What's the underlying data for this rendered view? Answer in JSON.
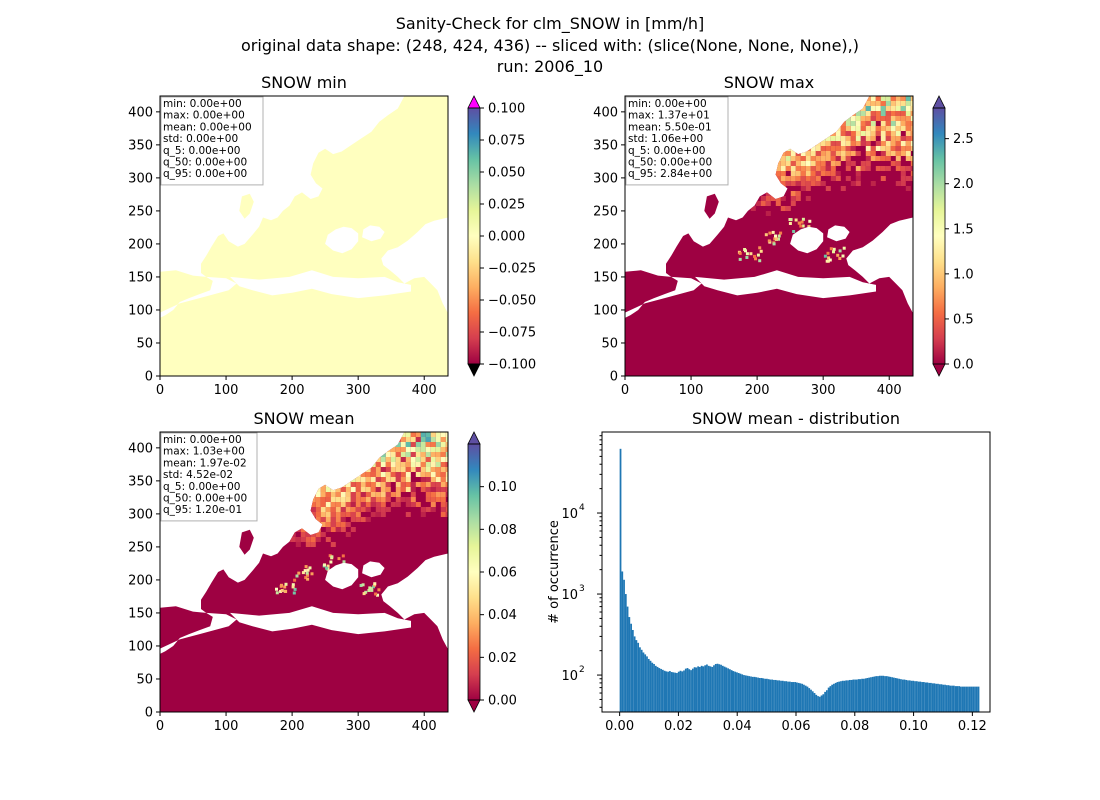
{
  "figure": {
    "title_lines": [
      "Sanity-Check for clm_SNOW in [mm/h]",
      "original data shape: (248, 424, 436) -- sliced with: (slice(None, None, None),)",
      "run: 2006_10"
    ]
  },
  "colormap": {
    "name": "Spectral",
    "stops": [
      "#9e0142",
      "#d53e4f",
      "#f46d43",
      "#fdae61",
      "#fee08b",
      "#ffffbf",
      "#e6f598",
      "#abdda4",
      "#66c2a5",
      "#3288bd",
      "#5e4fa2"
    ],
    "over_min_panel": "#ff00ff",
    "under_min_panel": "#000000"
  },
  "chart_data": [
    {
      "type": "heatmap",
      "title": "SNOW min",
      "xticks": [
        "0",
        "100",
        "200",
        "300",
        "400"
      ],
      "yticks": [
        "0",
        "50",
        "100",
        "150",
        "200",
        "250",
        "300",
        "350",
        "400"
      ],
      "xlim": [
        0,
        436
      ],
      "ylim": [
        0,
        424
      ],
      "field_kind": "uniform",
      "colorbar": {
        "range": [
          -0.1,
          0.1
        ],
        "ticks": [
          "0.100",
          "0.075",
          "0.050",
          "0.025",
          "0.000",
          "−0.025",
          "−0.050",
          "−0.075",
          "−0.100"
        ],
        "extend": "both"
      },
      "stats": [
        "min: 0.00e+00",
        "max: 0.00e+00",
        "mean: 0.00e+00",
        "std: 0.00e+00",
        "q_5: 0.00e+00",
        "q_50: 0.00e+00",
        "q_95: 0.00e+00"
      ]
    },
    {
      "type": "heatmap",
      "title": "SNOW max",
      "xticks": [
        "0",
        "100",
        "200",
        "300",
        "400"
      ],
      "yticks": [
        "0",
        "50",
        "100",
        "150",
        "200",
        "250",
        "300",
        "350",
        "400"
      ],
      "xlim": [
        0,
        436
      ],
      "ylim": [
        0,
        424
      ],
      "field_kind": "snow",
      "colorbar": {
        "range": [
          0,
          2.84
        ],
        "ticks": [
          "2.5",
          "2.0",
          "1.5",
          "1.0",
          "0.5",
          "0.0"
        ],
        "tick_values": [
          2.5,
          2.0,
          1.5,
          1.0,
          0.5,
          0.0
        ],
        "extend": "both"
      },
      "stats": [
        "min: 0.00e+00",
        "max: 1.37e+01",
        "mean: 5.50e-01",
        "std: 1.06e+00",
        "q_5: 0.00e+00",
        "q_50: 0.00e+00",
        "q_95: 2.84e+00"
      ]
    },
    {
      "type": "heatmap",
      "title": "SNOW mean",
      "xticks": [
        "0",
        "100",
        "200",
        "300",
        "400"
      ],
      "yticks": [
        "0",
        "50",
        "100",
        "150",
        "200",
        "250",
        "300",
        "350",
        "400"
      ],
      "xlim": [
        0,
        436
      ],
      "ylim": [
        0,
        424
      ],
      "field_kind": "snow",
      "colorbar": {
        "range": [
          0,
          0.12
        ],
        "ticks": [
          "0.10",
          "0.08",
          "0.06",
          "0.04",
          "0.02",
          "0.00"
        ],
        "tick_values": [
          0.1,
          0.08,
          0.06,
          0.04,
          0.02,
          0.0
        ],
        "extend": "both"
      },
      "stats": [
        "min: 0.00e+00",
        "max: 1.03e+00",
        "mean: 1.97e-02",
        "std: 4.52e-02",
        "q_5: 0.00e+00",
        "q_50: 0.00e+00",
        "q_95: 1.20e-01"
      ]
    },
    {
      "type": "bar",
      "title": "SNOW mean - distribution",
      "ylabel": "# of occurrence",
      "xlabel": "",
      "yscale": "log",
      "xlim": [
        -0.006,
        0.126
      ],
      "ylim": [
        35,
        100000
      ],
      "xticks": [
        "0.00",
        "0.02",
        "0.04",
        "0.06",
        "0.08",
        "0.10",
        "0.12"
      ],
      "xtick_values": [
        0,
        0.02,
        0.04,
        0.06,
        0.08,
        0.1,
        0.12
      ],
      "ytick_values": [
        100,
        1000,
        10000
      ],
      "bar_color": "#1f77b4",
      "bin_width": 0.0006,
      "bin_start": 0.0,
      "values": [
        62000,
        1900,
        1500,
        1000,
        700,
        520,
        430,
        360,
        300,
        270,
        250,
        220,
        205,
        190,
        180,
        170,
        158,
        150,
        142,
        137,
        130,
        126,
        122,
        119,
        116,
        113,
        111,
        110,
        112,
        109,
        108,
        107,
        106,
        110,
        113,
        111,
        114,
        120,
        122,
        118,
        115,
        120,
        125,
        124,
        128,
        126,
        130,
        128,
        132,
        135,
        130,
        128,
        126,
        132,
        137,
        138,
        136,
        134,
        130,
        127,
        124,
        121,
        118,
        115,
        112,
        110,
        108,
        106,
        104,
        102,
        100,
        99,
        98,
        97,
        96,
        95,
        95,
        94,
        93,
        92,
        92,
        91,
        90,
        90,
        89,
        88,
        88,
        87,
        87,
        86,
        86,
        85,
        85,
        84,
        84,
        83,
        83,
        82,
        82,
        82,
        81,
        80,
        79,
        78,
        76,
        74,
        72,
        69,
        66,
        63,
        60,
        57,
        55,
        54,
        56,
        58,
        62,
        65,
        70,
        73,
        76,
        78,
        80,
        82,
        83,
        84,
        85,
        85,
        86,
        86,
        87,
        87,
        88,
        88,
        88,
        89,
        89,
        90,
        90,
        91,
        92,
        93,
        94,
        95,
        96,
        97,
        97,
        98,
        98,
        98,
        97,
        97,
        96,
        95,
        94,
        93,
        92,
        91,
        90,
        89,
        88,
        88,
        87,
        86,
        86,
        85,
        85,
        84,
        84,
        83,
        83,
        82,
        82,
        81,
        81,
        80,
        80,
        79,
        79,
        78,
        78,
        77,
        77,
        76,
        76,
        75,
        75,
        74,
        74,
        74,
        73,
        73,
        73,
        72,
        72,
        72,
        72,
        72,
        72,
        72,
        72,
        72,
        72,
        72
      ]
    }
  ]
}
